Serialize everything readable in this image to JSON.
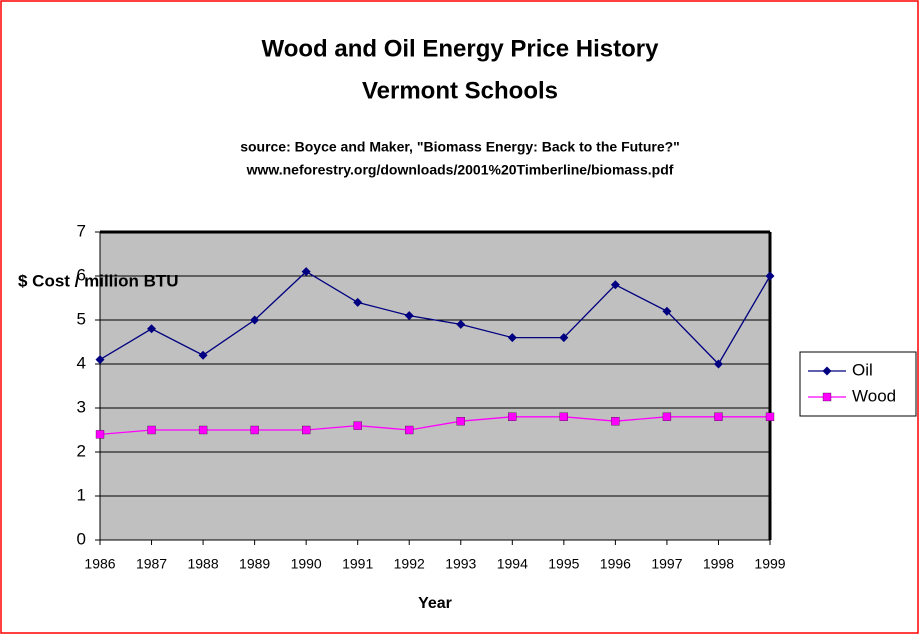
{
  "chart_data": {
    "type": "line",
    "title": [
      "Wood and Oil Energy Price History",
      "Vermont Schools"
    ],
    "source": [
      "source: Boyce and Maker, \"Biomass Energy: Back to the Future?\"",
      "www.neforestry.org/downloads/2001%20Timberline/biomass.pdf"
    ],
    "y_label": "$ Cost / million BTU",
    "x_label": "Year",
    "x": [
      1986,
      1987,
      1988,
      1989,
      1990,
      1991,
      1992,
      1993,
      1994,
      1995,
      1996,
      1997,
      1998,
      1999
    ],
    "xlim": [
      1986,
      1999
    ],
    "xticks": [
      1986,
      1987,
      1988,
      1989,
      1990,
      1991,
      1992,
      1993,
      1994,
      1995,
      1996,
      1997,
      1998,
      1999
    ],
    "ylim": [
      0,
      7
    ],
    "yticks": [
      0,
      1,
      2,
      3,
      4,
      5,
      6,
      7
    ],
    "grid": true,
    "legend": "right",
    "series": [
      {
        "name": "Oil",
        "color": "#000080",
        "marker": "diamond",
        "values": [
          4.1,
          4.8,
          4.2,
          5.0,
          6.1,
          5.4,
          5.1,
          4.9,
          4.6,
          4.6,
          5.8,
          5.2,
          4.0,
          6.0
        ]
      },
      {
        "name": "Wood",
        "color": "#ff00ff",
        "marker": "square",
        "values": [
          2.4,
          2.5,
          2.5,
          2.5,
          2.5,
          2.6,
          2.5,
          2.7,
          2.8,
          2.8,
          2.7,
          2.8,
          2.8,
          2.8
        ]
      }
    ]
  }
}
